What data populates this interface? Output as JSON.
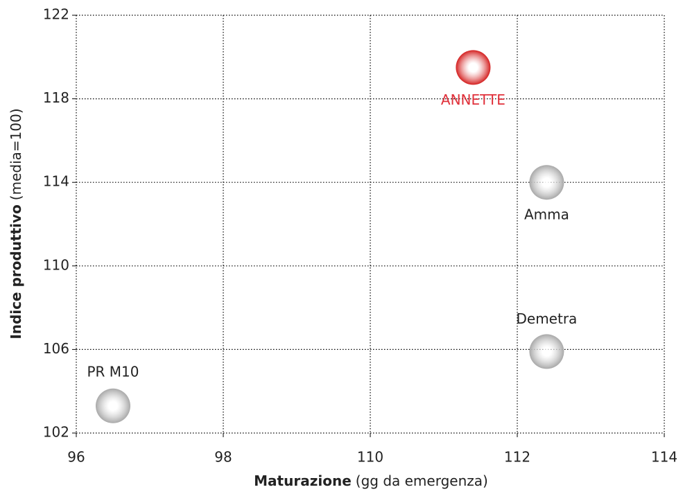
{
  "chart_data": {
    "type": "scatter",
    "xlabel": {
      "bold": "Maturazione",
      "normal": "(gg da emergenza)"
    },
    "ylabel": {
      "bold": "Indice produttivo",
      "normal": "(media=100)"
    },
    "labels": [
      "PR M10",
      "ANNETTE",
      "Amma",
      "Demetra"
    ],
    "x": [
      96.5,
      111.4,
      112.4,
      112.4
    ],
    "y": [
      103.3,
      119.5,
      114,
      105.9
    ],
    "colors": [
      "#a8a8a8",
      "#d42020",
      "#a8a8a8",
      "#a8a8a8"
    ],
    "label_colors": [
      "#222222",
      "#e0303a",
      "#222222",
      "#222222"
    ],
    "xlim": [
      96,
      114
    ],
    "xticks": [
      96,
      98,
      110,
      112,
      114
    ],
    "ylim": [
      102,
      122
    ],
    "yticks": [
      102,
      106,
      110,
      114,
      118,
      122
    ],
    "grid": true
  }
}
